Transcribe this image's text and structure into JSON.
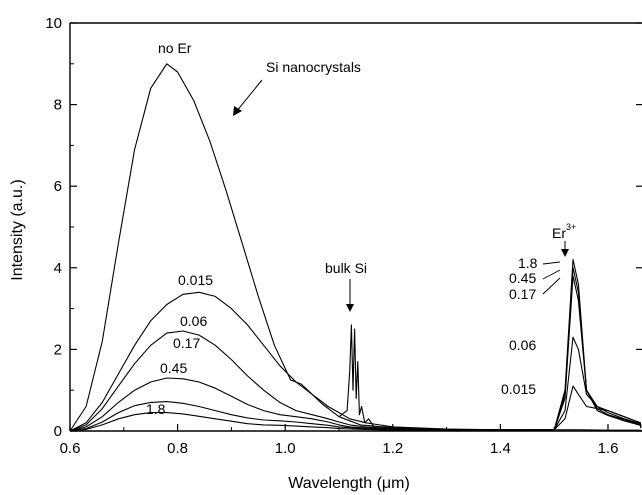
{
  "chart_data": {
    "type": "line",
    "title": "",
    "xlabel": "Wavelength (μm)",
    "ylabel": "Intensity (a.u.)",
    "xlim": [
      0.6,
      1.7
    ],
    "ylim": [
      0,
      10
    ],
    "x_ticks": [
      0.6,
      0.8,
      1.0,
      1.2,
      1.4,
      1.6
    ],
    "x_tick_labels": [
      "0.6",
      "0.8",
      "1.0",
      "1.2",
      "1.4",
      "1.6"
    ],
    "y_ticks": [
      0,
      2,
      4,
      6,
      8,
      10
    ],
    "y_tick_labels": [
      "0",
      "2",
      "4",
      "6",
      "8",
      "10"
    ],
    "grid": false,
    "legend": "none",
    "series": [
      {
        "label": "no Er",
        "x": [
          0.6,
          0.63,
          0.66,
          0.69,
          0.72,
          0.75,
          0.78,
          0.8,
          0.83,
          0.86,
          0.89,
          0.92,
          0.95,
          0.98,
          1.01,
          1.03,
          1.05,
          1.07,
          1.09,
          1.1,
          1.12,
          1.14,
          1.2,
          1.3,
          1.4,
          1.5,
          1.55,
          1.6,
          1.7
        ],
        "y": [
          0,
          0.6,
          2.2,
          4.6,
          6.9,
          8.4,
          9.0,
          8.8,
          8.1,
          7.1,
          5.9,
          4.6,
          3.3,
          2.1,
          1.25,
          1.15,
          0.9,
          0.65,
          0.45,
          0.35,
          0.25,
          0.15,
          0.08,
          0.04,
          0.03,
          0.03,
          0.03,
          0.02,
          0.02
        ]
      },
      {
        "label": "0.015",
        "x": [
          0.6,
          0.63,
          0.66,
          0.69,
          0.72,
          0.75,
          0.78,
          0.81,
          0.84,
          0.87,
          0.9,
          0.93,
          0.96,
          0.99,
          1.02,
          1.05,
          1.08,
          1.1,
          1.12,
          1.15,
          1.2,
          1.3,
          1.4,
          1.5,
          1.52,
          1.535,
          1.545,
          1.56,
          1.58,
          1.6,
          1.63,
          1.66,
          1.7
        ],
        "y": [
          0,
          0.2,
          0.7,
          1.4,
          2.1,
          2.7,
          3.1,
          3.35,
          3.4,
          3.3,
          3.0,
          2.6,
          2.1,
          1.6,
          1.2,
          0.9,
          0.6,
          0.45,
          0.3,
          0.2,
          0.1,
          0.05,
          0.03,
          0.03,
          0.3,
          1.1,
          0.9,
          0.6,
          0.55,
          0.5,
          0.35,
          0.2,
          0.1
        ]
      },
      {
        "label": "0.06",
        "x": [
          0.6,
          0.63,
          0.66,
          0.69,
          0.72,
          0.75,
          0.78,
          0.81,
          0.84,
          0.87,
          0.9,
          0.93,
          0.96,
          0.99,
          1.02,
          1.05,
          1.08,
          1.1,
          1.12,
          1.15,
          1.2,
          1.3,
          1.4,
          1.5,
          1.52,
          1.535,
          1.545,
          1.56,
          1.58,
          1.6,
          1.63,
          1.66,
          1.7
        ],
        "y": [
          0,
          0.15,
          0.55,
          1.1,
          1.65,
          2.1,
          2.4,
          2.45,
          2.35,
          2.1,
          1.75,
          1.35,
          1.0,
          0.7,
          0.5,
          0.4,
          0.3,
          0.22,
          0.15,
          0.1,
          0.06,
          0.04,
          0.03,
          0.03,
          0.5,
          2.3,
          2.0,
          0.9,
          0.6,
          0.5,
          0.35,
          0.2,
          0.1
        ]
      },
      {
        "label": "0.17",
        "x": [
          0.6,
          0.63,
          0.66,
          0.69,
          0.72,
          0.75,
          0.78,
          0.81,
          0.84,
          0.87,
          0.9,
          0.93,
          0.96,
          0.99,
          1.02,
          1.05,
          1.08,
          1.1,
          1.12,
          1.15,
          1.2,
          1.3,
          1.4,
          1.5,
          1.52,
          1.535,
          1.545,
          1.56,
          1.58,
          1.6,
          1.63,
          1.66,
          1.7
        ],
        "y": [
          0,
          0.1,
          0.35,
          0.7,
          1.0,
          1.2,
          1.3,
          1.28,
          1.2,
          1.05,
          0.85,
          0.65,
          0.5,
          0.4,
          0.35,
          0.3,
          0.22,
          0.15,
          0.1,
          0.07,
          0.04,
          0.03,
          0.03,
          0.03,
          0.8,
          3.8,
          3.2,
          1.0,
          0.6,
          0.45,
          0.3,
          0.18,
          0.1
        ]
      },
      {
        "label": "0.45",
        "x": [
          0.6,
          0.63,
          0.66,
          0.69,
          0.72,
          0.75,
          0.78,
          0.81,
          0.84,
          0.87,
          0.9,
          0.93,
          0.96,
          0.99,
          1.02,
          1.05,
          1.08,
          1.1,
          1.12,
          1.15,
          1.2,
          1.3,
          1.4,
          1.5,
          1.52,
          1.535,
          1.545,
          1.56,
          1.58,
          1.6,
          1.63,
          1.66,
          1.7
        ],
        "y": [
          0,
          0.06,
          0.22,
          0.45,
          0.62,
          0.7,
          0.72,
          0.68,
          0.6,
          0.5,
          0.4,
          0.32,
          0.27,
          0.25,
          0.22,
          0.18,
          0.14,
          0.1,
          0.08,
          0.05,
          0.03,
          0.02,
          0.02,
          0.03,
          0.9,
          4.0,
          3.4,
          1.0,
          0.55,
          0.4,
          0.28,
          0.15,
          0.08
        ]
      },
      {
        "label": "1.8",
        "x": [
          0.6,
          0.63,
          0.66,
          0.69,
          0.72,
          0.75,
          0.78,
          0.81,
          0.84,
          0.87,
          0.9,
          0.93,
          0.96,
          0.99,
          1.02,
          1.05,
          1.08,
          1.1,
          1.12,
          1.15,
          1.2,
          1.3,
          1.4,
          1.5,
          1.52,
          1.535,
          1.545,
          1.56,
          1.58,
          1.6,
          1.63,
          1.66,
          1.7
        ],
        "y": [
          0,
          0.04,
          0.15,
          0.3,
          0.4,
          0.45,
          0.45,
          0.42,
          0.36,
          0.3,
          0.24,
          0.18,
          0.15,
          0.14,
          0.12,
          0.1,
          0.08,
          0.06,
          0.05,
          0.04,
          0.02,
          0.02,
          0.02,
          0.03,
          1.0,
          4.2,
          3.6,
          1.0,
          0.5,
          0.38,
          0.25,
          0.14,
          0.07
        ]
      },
      {
        "label": "bulk Si spike",
        "x": [
          1.1,
          1.115,
          1.12,
          1.123,
          1.126,
          1.129,
          1.132,
          1.135,
          1.138,
          1.142,
          1.148,
          1.155,
          1.165
        ],
        "y": [
          0.35,
          0.5,
          1.5,
          2.6,
          1.0,
          2.5,
          0.8,
          1.7,
          0.4,
          0.6,
          0.2,
          0.3,
          0.1
        ]
      }
    ],
    "annotations": {
      "no_er": "no Er",
      "si_nanocrystals": "Si nanocrystals",
      "bulk_si": "bulk Si",
      "er_base": "Er",
      "er_sup": "3+",
      "left_labels": [
        "0.015",
        "0.06",
        "0.17",
        "0.45",
        "1.8"
      ],
      "right_labels": [
        "1.8",
        "0.45",
        "0.17",
        "0.06",
        "0.015"
      ]
    }
  }
}
